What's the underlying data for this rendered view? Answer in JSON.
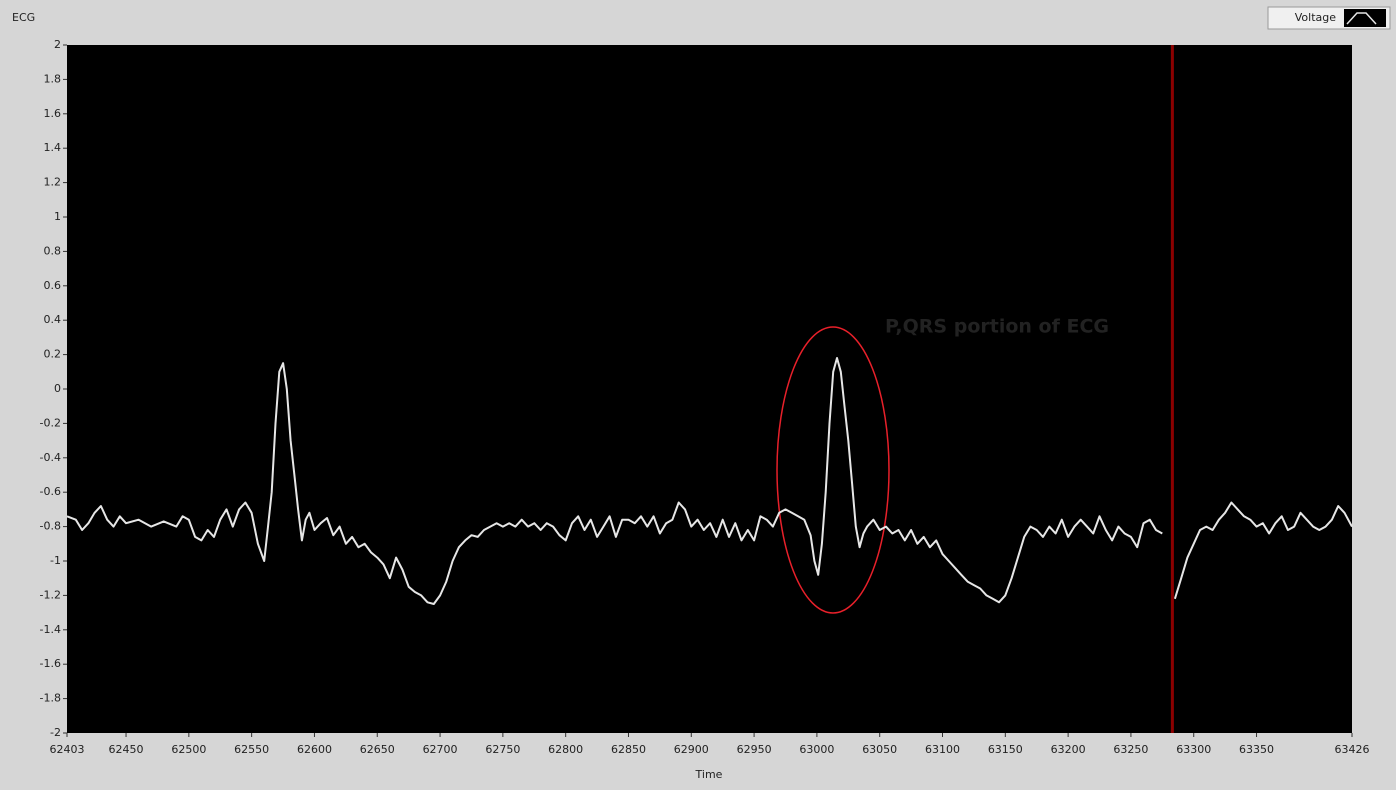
{
  "chart_data": {
    "type": "line",
    "title": "ECG",
    "x_label": "Time",
    "annotation": "P,QRS portion of ECG",
    "annotation_color": "#e8202a",
    "background": "#000000",
    "grid": false,
    "legend_position": "top-right",
    "cursor": {
      "x": 63283,
      "color": "#8b0000"
    },
    "xlim": [
      62403,
      63426
    ],
    "xticks": [
      62403,
      62450,
      62500,
      62550,
      62600,
      62650,
      62700,
      62750,
      62800,
      62850,
      62900,
      62950,
      63000,
      63050,
      63100,
      63150,
      63200,
      63250,
      63300,
      63350,
      63426
    ],
    "ylim": [
      -2,
      2
    ],
    "yticks": [
      -2,
      -1.8,
      -1.6,
      -1.4,
      -1.2,
      -1,
      -0.8,
      -0.6,
      -0.4,
      -0.2,
      0,
      0.2,
      0.4,
      0.6,
      0.8,
      1,
      1.2,
      1.4,
      1.6,
      1.8,
      2
    ],
    "x": [
      62403,
      62410,
      62415,
      62420,
      62425,
      62430,
      62435,
      62440,
      62445,
      62450,
      62460,
      62470,
      62480,
      62490,
      62495,
      62500,
      62505,
      62510,
      62515,
      62520,
      62525,
      62530,
      62535,
      62540,
      62545,
      62550,
      62555,
      62560,
      62563,
      62566,
      62569,
      62572,
      62575,
      62578,
      62581,
      62584,
      62587,
      62590,
      62593,
      62596,
      62600,
      62605,
      62610,
      62615,
      62620,
      62625,
      62630,
      62635,
      62640,
      62645,
      62650,
      62655,
      62660,
      62665,
      62670,
      62675,
      62680,
      62685,
      62690,
      62695,
      62700,
      62705,
      62710,
      62715,
      62720,
      62725,
      62730,
      62735,
      62740,
      62745,
      62750,
      62755,
      62760,
      62765,
      62770,
      62775,
      62780,
      62785,
      62790,
      62795,
      62800,
      62805,
      62810,
      62815,
      62820,
      62825,
      62830,
      62835,
      62840,
      62845,
      62850,
      62855,
      62860,
      62865,
      62870,
      62875,
      62880,
      62885,
      62890,
      62895,
      62900,
      62905,
      62910,
      62915,
      62920,
      62925,
      62930,
      62935,
      62940,
      62945,
      62950,
      62955,
      62960,
      62965,
      62970,
      62975,
      62980,
      62985,
      62990,
      62995,
      62998,
      63001,
      63004,
      63007,
      63010,
      63013,
      63016,
      63019,
      63022,
      63025,
      63028,
      63031,
      63034,
      63037,
      63040,
      63045,
      63050,
      63055,
      63060,
      63065,
      63070,
      63075,
      63080,
      63085,
      63090,
      63095,
      63100,
      63105,
      63110,
      63115,
      63120,
      63125,
      63130,
      63135,
      63140,
      63145,
      63150,
      63155,
      63160,
      63165,
      63170,
      63175,
      63180,
      63185,
      63190,
      63195,
      63200,
      63205,
      63210,
      63215,
      63220,
      63225,
      63230,
      63235,
      63240,
      63245,
      63250,
      63255,
      63260,
      63265,
      63270,
      63275,
      63280,
      63285,
      63290,
      63295,
      63300,
      63305,
      63310,
      63315,
      63320,
      63325,
      63330,
      63335,
      63340,
      63345,
      63350,
      63355,
      63360,
      63365,
      63370,
      63375,
      63380,
      63385,
      63390,
      63395,
      63400,
      63405,
      63410,
      63415,
      63420,
      63426
    ],
    "series": [
      {
        "name": "Voltage",
        "color": "#e6e6e6",
        "values": [
          -0.74,
          -0.76,
          -0.82,
          -0.78,
          -0.72,
          -0.68,
          -0.76,
          -0.8,
          -0.74,
          -0.78,
          -0.76,
          -0.8,
          -0.77,
          -0.8,
          -0.74,
          -0.76,
          -0.86,
          -0.88,
          -0.82,
          -0.86,
          -0.76,
          -0.7,
          -0.8,
          -0.7,
          -0.66,
          -0.72,
          -0.9,
          -1.0,
          -0.8,
          -0.6,
          -0.2,
          0.1,
          0.15,
          0.0,
          -0.3,
          -0.5,
          -0.7,
          -0.88,
          -0.76,
          -0.72,
          -0.82,
          -0.78,
          -0.75,
          -0.85,
          -0.8,
          -0.9,
          -0.86,
          -0.92,
          -0.9,
          -0.95,
          -0.98,
          -1.02,
          -1.1,
          -0.98,
          -1.05,
          -1.15,
          -1.18,
          -1.2,
          -1.24,
          -1.25,
          -1.2,
          -1.12,
          -1.0,
          -0.92,
          -0.88,
          -0.85,
          -0.86,
          -0.82,
          -0.8,
          -0.78,
          -0.8,
          -0.78,
          -0.8,
          -0.76,
          -0.8,
          -0.78,
          -0.82,
          -0.78,
          -0.8,
          -0.85,
          -0.88,
          -0.78,
          -0.74,
          -0.82,
          -0.76,
          -0.86,
          -0.8,
          -0.74,
          -0.86,
          -0.76,
          -0.76,
          -0.78,
          -0.74,
          -0.8,
          -0.74,
          -0.84,
          -0.78,
          -0.76,
          -0.66,
          -0.7,
          -0.8,
          -0.76,
          -0.82,
          -0.78,
          -0.86,
          -0.76,
          -0.86,
          -0.78,
          -0.88,
          -0.82,
          -0.88,
          -0.74,
          -0.76,
          -0.8,
          -0.72,
          -0.7,
          -0.72,
          -0.74,
          -0.76,
          -0.85,
          -1.0,
          -1.08,
          -0.9,
          -0.6,
          -0.2,
          0.1,
          0.18,
          0.1,
          -0.1,
          -0.3,
          -0.55,
          -0.8,
          -0.92,
          -0.84,
          -0.8,
          -0.76,
          -0.82,
          -0.8,
          -0.84,
          -0.82,
          -0.88,
          -0.82,
          -0.9,
          -0.86,
          -0.92,
          -0.88,
          -0.96,
          -1.0,
          -1.04,
          -1.08,
          -1.12,
          -1.14,
          -1.16,
          -1.2,
          -1.22,
          -1.24,
          -1.2,
          -1.1,
          -0.98,
          -0.86,
          -0.8,
          -0.82,
          -0.86,
          -0.8,
          -0.84,
          -0.76,
          -0.86,
          -0.8,
          -0.76,
          -0.8,
          -0.84,
          -0.74,
          -0.82,
          -0.88,
          -0.8,
          -0.84,
          -0.86,
          -0.92,
          -0.78,
          -0.76,
          -0.82,
          -0.84,
          null,
          -1.22,
          -1.1,
          -0.98,
          -0.9,
          -0.82,
          -0.8,
          -0.82,
          -0.76,
          -0.72,
          -0.66,
          -0.7,
          -0.74,
          -0.76,
          -0.8,
          -0.78,
          -0.84,
          -0.78,
          -0.74,
          -0.82,
          -0.8,
          -0.72,
          -0.76,
          -0.8,
          -0.82,
          -0.8,
          -0.76,
          -0.68,
          -0.72,
          -0.8
        ]
      }
    ]
  }
}
